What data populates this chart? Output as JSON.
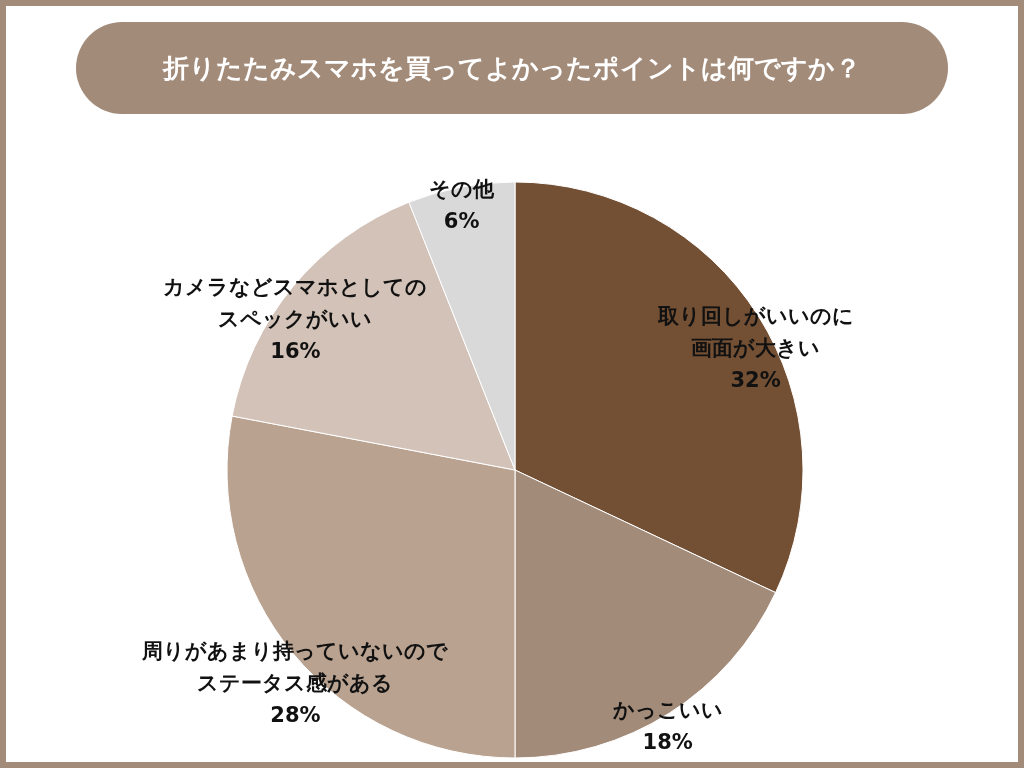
{
  "chart_data": {
    "type": "pie",
    "title": "折りたたみスマホを買ってよかったポイントは何ですか？",
    "categories": [
      "取り回しがいいのに画面が大きい",
      "かっこいい",
      "周りがあまり持っていないのでステータス感がある",
      "カメラなどスマホとしてのスペックがいい",
      "その他"
    ],
    "values": [
      32,
      18,
      28,
      16,
      6
    ],
    "value_labels": [
      "32%",
      "18%",
      "28%",
      "16%",
      "6%"
    ],
    "colors": [
      "#734f33",
      "#a38b7a",
      "#b9a290",
      "#d3c2b7",
      "#d9d9d9"
    ]
  }
}
